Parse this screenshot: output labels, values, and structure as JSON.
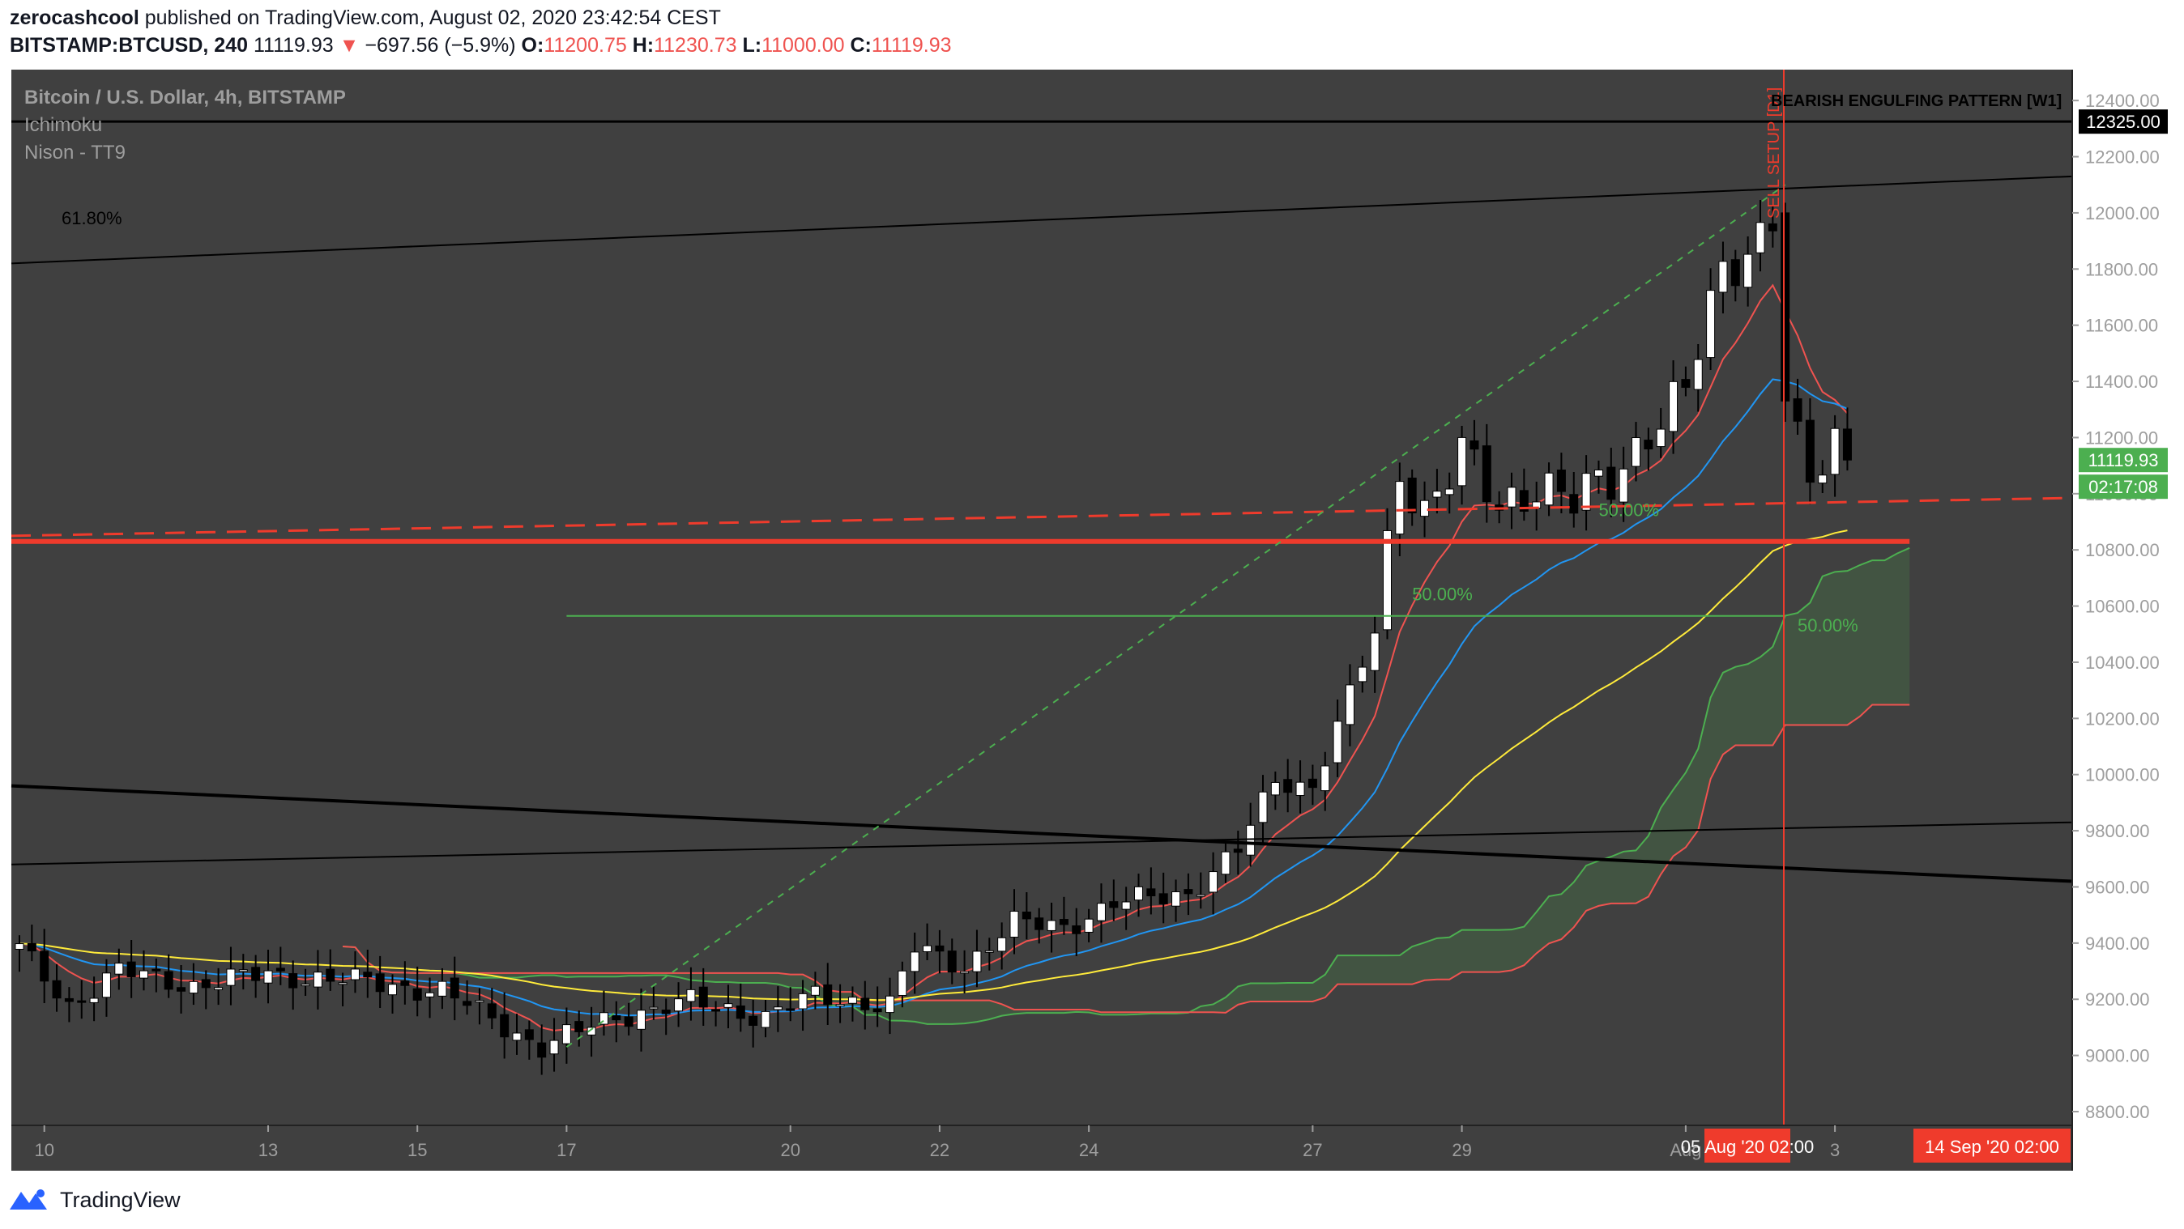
{
  "header": {
    "author": "zerocashcool",
    "published_text": "published on TradingView.com, August 02, 2020 23:42:54 CEST",
    "symbol": "BITSTAMP:BTCUSD, 240",
    "last": "11119.93",
    "change_arrow": "▼",
    "change": "−697.56 (−5.9%)",
    "o_label": "O:",
    "o_value": "11200.75",
    "h_label": "H:",
    "h_value": "11230.73",
    "l_label": "L:",
    "l_value": "11000.00",
    "c_label": "C:",
    "c_value": "11119.93"
  },
  "legend": [
    "Bitcoin / U.S. Dollar, 4h, BITSTAMP",
    "Ichimoku",
    "Nison - TT9"
  ],
  "colors": {
    "background": "#404040",
    "up": "#ffffff",
    "down": "#000000",
    "ema_fast": "#ef5350",
    "ema_mid": "#2196f3",
    "ema_slow": "#ffeb3b",
    "cloud": "#4caf50",
    "support": "#ef3b2c",
    "sell_box": "#ef3b2c",
    "price_label": "#4caf50"
  },
  "chart_data": {
    "type": "candlestick",
    "ylim": [
      8700,
      12500
    ],
    "y_ticks": [
      8800,
      9000,
      9200,
      9400,
      9600,
      9800,
      10000,
      10200,
      10400,
      10600,
      10800,
      11000,
      11200,
      11400,
      11600,
      11800,
      12000,
      12200,
      12400
    ],
    "x_ticks": [
      {
        "label": "10",
        "t": 2
      },
      {
        "label": "13",
        "t": 20
      },
      {
        "label": "15",
        "t": 32
      },
      {
        "label": "17",
        "t": 44
      },
      {
        "label": "20",
        "t": 62
      },
      {
        "label": "22",
        "t": 74
      },
      {
        "label": "24",
        "t": 86
      },
      {
        "label": "27",
        "t": 104
      },
      {
        "label": "29",
        "t": 116
      },
      {
        "label": "Aug",
        "t": 134
      },
      {
        "label": "3",
        "t": 146
      }
    ],
    "ohlc_path": [
      [
        0,
        9380
      ],
      [
        4,
        9180
      ],
      [
        8,
        9300
      ],
      [
        14,
        9250
      ],
      [
        20,
        9290
      ],
      [
        28,
        9260
      ],
      [
        34,
        9230
      ],
      [
        42,
        9030
      ],
      [
        48,
        9140
      ],
      [
        54,
        9190
      ],
      [
        60,
        9140
      ],
      [
        64,
        9210
      ],
      [
        70,
        9180
      ],
      [
        72,
        9380
      ],
      [
        76,
        9320
      ],
      [
        80,
        9470
      ],
      [
        84,
        9460
      ],
      [
        88,
        9540
      ],
      [
        94,
        9580
      ],
      [
        98,
        9730
      ],
      [
        101,
        9980
      ],
      [
        104,
        9960
      ],
      [
        107,
        10280
      ],
      [
        109,
        10500
      ],
      [
        111,
        11100
      ],
      [
        113,
        10950
      ],
      [
        116,
        11130
      ],
      [
        119,
        10950
      ],
      [
        122,
        11050
      ],
      [
        125,
        10960
      ],
      [
        128,
        11050
      ],
      [
        131,
        11240
      ],
      [
        134,
        11350
      ],
      [
        137,
        11800
      ],
      [
        139,
        11880
      ],
      [
        141,
        12000
      ],
      [
        142,
        11350
      ],
      [
        143,
        11150
      ],
      [
        144,
        11020
      ],
      [
        146,
        11180
      ],
      [
        147,
        11119
      ]
    ],
    "last_price": "11119.93",
    "countdown": "02:17:08",
    "resistance_label": "12325.00",
    "resistance_value": 12325,
    "annotations": {
      "fib_618": "61.80%",
      "fib_50_a": "50.00%",
      "fib_50_b": "50.00%",
      "fib_50_c": "50.00%",
      "pattern": "BEARISH ENGULFING PATTERN [W1]",
      "sell_setup": "SELL SETUP [D1]"
    },
    "future_labels": [
      "05 Aug '20   02:00",
      "14 Sep '20   02:00"
    ]
  },
  "footer": {
    "brand": "TradingView",
    "logo_icon": "tradingview-logo-icon"
  }
}
